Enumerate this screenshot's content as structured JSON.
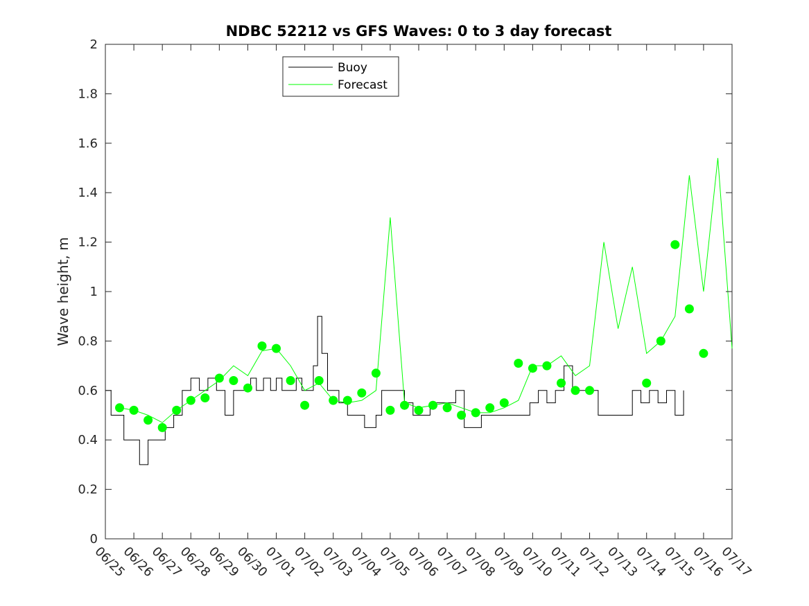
{
  "chart_data": {
    "type": "line",
    "title": "NDBC 52212 vs GFS Waves: 0 to 3 day forecast",
    "xlabel": "",
    "ylabel": "Wave height, m",
    "x_tick_labels": [
      "06/25",
      "06/26",
      "06/27",
      "06/28",
      "06/29",
      "06/30",
      "07/01",
      "07/02",
      "07/03",
      "07/04",
      "07/05",
      "07/06",
      "07/07",
      "07/08",
      "07/09",
      "07/10",
      "07/11",
      "07/12",
      "07/13",
      "07/14",
      "07/15",
      "07/16",
      "07/17"
    ],
    "xlim_days": [
      0,
      22
    ],
    "ylim": [
      0,
      2
    ],
    "y_ticks": [
      0,
      0.2,
      0.4,
      0.6,
      0.8,
      1,
      1.2,
      1.4,
      1.6,
      1.8,
      2
    ],
    "y_tick_labels": [
      "0",
      "0.2",
      "0.4",
      "0.6",
      "0.8",
      "1",
      "1.2",
      "1.4",
      "1.6",
      "1.8",
      "2"
    ],
    "grid": false,
    "legend": {
      "position": "top-left",
      "entries": [
        {
          "label": "Buoy",
          "color": "#000000"
        },
        {
          "label": "Forecast",
          "color": "#00ff00"
        }
      ]
    },
    "colors": {
      "buoy": "#000000",
      "forecast": "#00ff00",
      "axis": "#262626"
    },
    "series": [
      {
        "name": "Buoy",
        "x": [
          0.0,
          0.2,
          0.45,
          0.65,
          0.95,
          1.2,
          1.5,
          1.85,
          2.1,
          2.4,
          2.7,
          3.0,
          3.3,
          3.6,
          3.9,
          4.2,
          4.5,
          4.8,
          5.1,
          5.3,
          5.55,
          5.8,
          6.0,
          6.2,
          6.45,
          6.7,
          6.9,
          7.1,
          7.3,
          7.45,
          7.6,
          7.8,
          8.0,
          8.2,
          8.5,
          8.8,
          9.1,
          9.3,
          9.5,
          9.7,
          9.9,
          10.2,
          10.5,
          10.8,
          11.1,
          11.4,
          11.7,
          12.0,
          12.3,
          12.6,
          12.9,
          13.2,
          13.5,
          13.8,
          14.0,
          14.3,
          14.6,
          14.9,
          15.2,
          15.5,
          15.8,
          16.1,
          16.4,
          16.7,
          17.0,
          17.3,
          17.6,
          17.9,
          18.2,
          18.5,
          18.8,
          19.1,
          19.4,
          19.7,
          20.0,
          20.3
        ],
        "y": [
          0.6,
          0.5,
          0.5,
          0.4,
          0.4,
          0.3,
          0.4,
          0.4,
          0.45,
          0.5,
          0.6,
          0.65,
          0.6,
          0.65,
          0.6,
          0.5,
          0.6,
          0.6,
          0.65,
          0.6,
          0.65,
          0.6,
          0.65,
          0.6,
          0.6,
          0.65,
          0.6,
          0.6,
          0.7,
          0.9,
          0.75,
          0.6,
          0.6,
          0.55,
          0.5,
          0.5,
          0.45,
          0.45,
          0.5,
          0.6,
          0.6,
          0.6,
          0.55,
          0.5,
          0.5,
          0.55,
          0.55,
          0.55,
          0.6,
          0.45,
          0.45,
          0.5,
          0.5,
          0.5,
          0.5,
          0.5,
          0.5,
          0.55,
          0.6,
          0.55,
          0.6,
          0.7,
          0.6,
          0.6,
          0.6,
          0.5,
          0.5,
          0.5,
          0.5,
          0.6,
          0.55,
          0.6,
          0.55,
          0.6,
          0.5,
          0.6
        ]
      },
      {
        "name": "Forecast",
        "x": [
          0.5,
          1.0,
          1.5,
          2.0,
          2.5,
          3.0,
          3.5,
          4.0,
          4.5,
          5.0,
          5.5,
          6.0,
          6.5,
          7.0,
          7.5,
          8.0,
          8.5,
          9.0,
          9.5,
          10.0,
          10.5,
          11.0,
          11.5,
          12.0,
          12.5,
          13.0,
          13.5,
          14.0,
          14.5,
          15.0,
          15.5,
          16.0,
          16.5,
          17.0,
          17.5,
          18.0,
          18.5,
          19.0,
          19.5,
          20.0,
          20.5,
          21.0,
          21.5,
          22.0
        ],
        "y": [
          0.53,
          0.52,
          0.5,
          0.47,
          0.52,
          0.56,
          0.6,
          0.64,
          0.7,
          0.66,
          0.76,
          0.77,
          0.7,
          0.6,
          0.63,
          0.56,
          0.55,
          0.56,
          0.6,
          1.3,
          0.55,
          0.53,
          0.54,
          0.55,
          0.53,
          0.51,
          0.51,
          0.53,
          0.56,
          0.7,
          0.7,
          0.74,
          0.66,
          0.7,
          1.2,
          0.85,
          1.1,
          0.75,
          0.8,
          0.9,
          1.47,
          1.0,
          1.54,
          0.77
        ]
      }
    ],
    "markers": {
      "name": "Forecast",
      "x": [
        0.5,
        1.0,
        1.5,
        2.0,
        2.5,
        3.0,
        3.5,
        4.0,
        4.5,
        5.0,
        5.5,
        6.0,
        6.5,
        7.0,
        7.5,
        8.0,
        8.5,
        9.0,
        9.5,
        10.0,
        10.5,
        11.0,
        11.5,
        12.0,
        12.5,
        13.0,
        13.5,
        14.0,
        14.5,
        15.0,
        15.5,
        16.0,
        16.5,
        17.0,
        19.0,
        19.5,
        20.0,
        20.5,
        21.0
      ],
      "y": [
        0.53,
        0.52,
        0.48,
        0.45,
        0.52,
        0.56,
        0.57,
        0.65,
        0.64,
        0.61,
        0.78,
        0.77,
        0.64,
        0.54,
        0.64,
        0.56,
        0.56,
        0.59,
        0.67,
        0.52,
        0.54,
        0.52,
        0.54,
        0.53,
        0.5,
        0.51,
        0.53,
        0.55,
        0.71,
        0.69,
        0.7,
        0.63,
        0.6,
        0.6,
        0.63,
        0.8,
        1.19,
        0.93,
        0.75
      ]
    }
  }
}
